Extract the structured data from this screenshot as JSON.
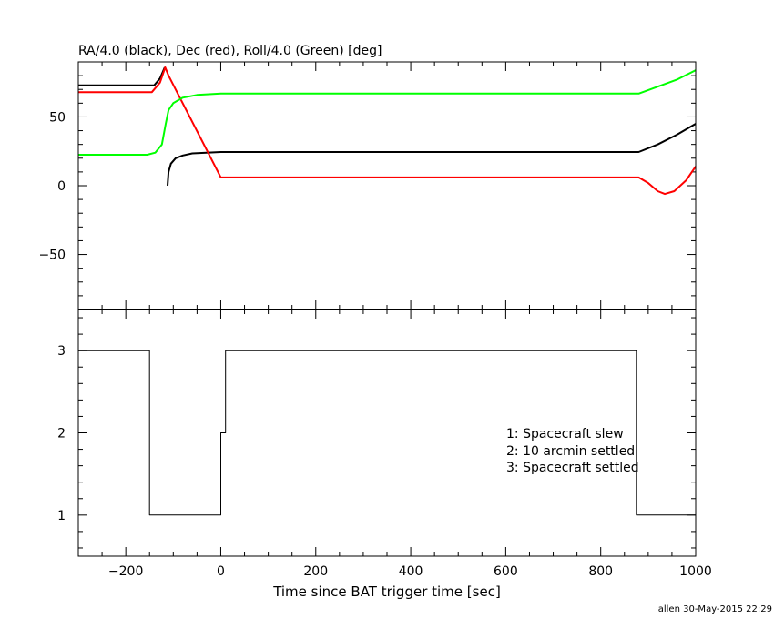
{
  "chart_data": [
    {
      "type": "line",
      "title": "RA/4.0 (black), Dec (red), Roll/4.0 (Green) [deg]",
      "xlim": [
        -300,
        1000
      ],
      "ylim": [
        -90,
        90
      ],
      "x_ticks": [
        "−200",
        "0",
        "200",
        "400",
        "600",
        "800",
        "1000"
      ],
      "x_tick_values": [
        -200,
        0,
        200,
        400,
        600,
        800,
        1000
      ],
      "y_ticks": [
        "−50",
        "0",
        "50"
      ],
      "y_tick_values": [
        -50,
        0,
        50
      ],
      "series": [
        {
          "color": "#000000",
          "segments": [
            [
              [
                -300,
                73
              ],
              [
                -140,
                73
              ],
              [
                -128,
                78
              ],
              [
                -118,
                86
              ]
            ],
            [
              [
                -112,
                0
              ],
              [
                -110,
                10
              ],
              [
                -105,
                16
              ],
              [
                -95,
                20
              ],
              [
                -80,
                22
              ],
              [
                -60,
                23.5
              ],
              [
                -30,
                24
              ],
              [
                0,
                24.5
              ],
              [
                200,
                24.5
              ],
              [
                880,
                24.5
              ],
              [
                920,
                30
              ],
              [
                960,
                37
              ],
              [
                1000,
                45
              ]
            ]
          ]
        },
        {
          "color": "#ff0000",
          "segments": [
            [
              [
                -300,
                68
              ],
              [
                -145,
                68
              ],
              [
                -128,
                75
              ],
              [
                -117,
                86
              ],
              [
                -110,
                80
              ],
              [
                0,
                6
              ],
              [
                880,
                6
              ],
              [
                900,
                2
              ],
              [
                920,
                -4
              ],
              [
                935,
                -6
              ],
              [
                955,
                -4
              ],
              [
                980,
                4
              ],
              [
                1000,
                14
              ]
            ]
          ]
        },
        {
          "color": "#00ff00",
          "segments": [
            [
              [
                -300,
                22.5
              ],
              [
                -155,
                22.5
              ],
              [
                -138,
                24
              ],
              [
                -124,
                30
              ],
              [
                -116,
                45
              ],
              [
                -110,
                55
              ],
              [
                -100,
                60
              ],
              [
                -80,
                64
              ],
              [
                -50,
                66
              ],
              [
                0,
                67
              ],
              [
                880,
                67
              ],
              [
                920,
                72
              ],
              [
                960,
                77
              ],
              [
                1000,
                84
              ]
            ]
          ]
        }
      ]
    },
    {
      "type": "line",
      "xlim": [
        -300,
        1000
      ],
      "ylim": [
        0.5,
        3.5
      ],
      "x_ticks": [
        "−200",
        "0",
        "200",
        "400",
        "600",
        "800",
        "1000"
      ],
      "x_tick_values": [
        -200,
        0,
        200,
        400,
        600,
        800,
        1000
      ],
      "y_ticks": [
        "1",
        "2",
        "3"
      ],
      "y_tick_values": [
        1,
        2,
        3
      ],
      "xlabel": "Time since BAT trigger time [sec]",
      "series": [
        {
          "color": "#000000",
          "values": [
            [
              -300,
              3
            ],
            [
              -150,
              3
            ],
            [
              -150,
              1
            ],
            [
              0,
              1
            ],
            [
              0,
              2
            ],
            [
              10,
              2
            ],
            [
              10,
              3
            ],
            [
              875,
              3
            ],
            [
              875,
              1
            ],
            [
              1000,
              1
            ]
          ]
        }
      ],
      "annotations": [
        "1: Spacecraft slew",
        "2: 10 arcmin settled",
        "3: Spacecraft settled"
      ]
    }
  ],
  "footer": "allen 30-May-2015 22:29"
}
